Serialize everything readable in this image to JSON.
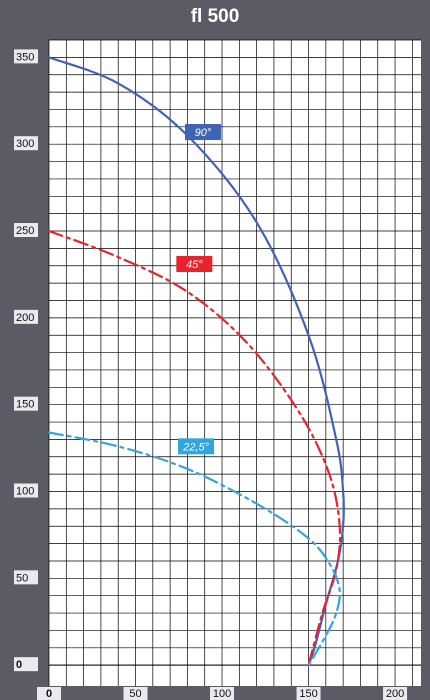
{
  "chart_data": {
    "type": "line",
    "title": "fl 500",
    "xlim": [
      0,
      215
    ],
    "ylim": [
      -12,
      360
    ],
    "x_ticks": [
      0,
      50,
      100,
      150,
      200
    ],
    "y_ticks": [
      0,
      50,
      100,
      150,
      200,
      250,
      300,
      350
    ],
    "grid": true,
    "colors": {
      "background": "#5b5b66",
      "plot": "#ffffff",
      "grid": "#000000"
    },
    "series": [
      {
        "name": "90°",
        "color": "#3f63b6",
        "dash": "solid",
        "points": [
          [
            0,
            350
          ],
          [
            40,
            335
          ],
          [
            80,
            305
          ],
          [
            120,
            255
          ],
          [
            150,
            190
          ],
          [
            166,
            130
          ],
          [
            170,
            100
          ],
          [
            170,
            80
          ],
          [
            167,
            60
          ],
          [
            160,
            35
          ],
          [
            154,
            12
          ],
          [
            150,
            0
          ]
        ]
      },
      {
        "name": "45°",
        "color": "#e8232d",
        "dash": "dashdot",
        "points": [
          [
            0,
            250
          ],
          [
            40,
            235
          ],
          [
            80,
            215
          ],
          [
            115,
            185
          ],
          [
            145,
            145
          ],
          [
            162,
            110
          ],
          [
            168,
            80
          ],
          [
            166,
            55
          ],
          [
            158,
            30
          ],
          [
            150,
            0
          ]
        ]
      },
      {
        "name": "22,5°",
        "color": "#30a5df",
        "dash": "dashdot",
        "points": [
          [
            0,
            134
          ],
          [
            40,
            126
          ],
          [
            80,
            113
          ],
          [
            120,
            93
          ],
          [
            150,
            73
          ],
          [
            163,
            57
          ],
          [
            168,
            43
          ],
          [
            166,
            30
          ],
          [
            160,
            17
          ],
          [
            150,
            0
          ]
        ]
      }
    ]
  }
}
